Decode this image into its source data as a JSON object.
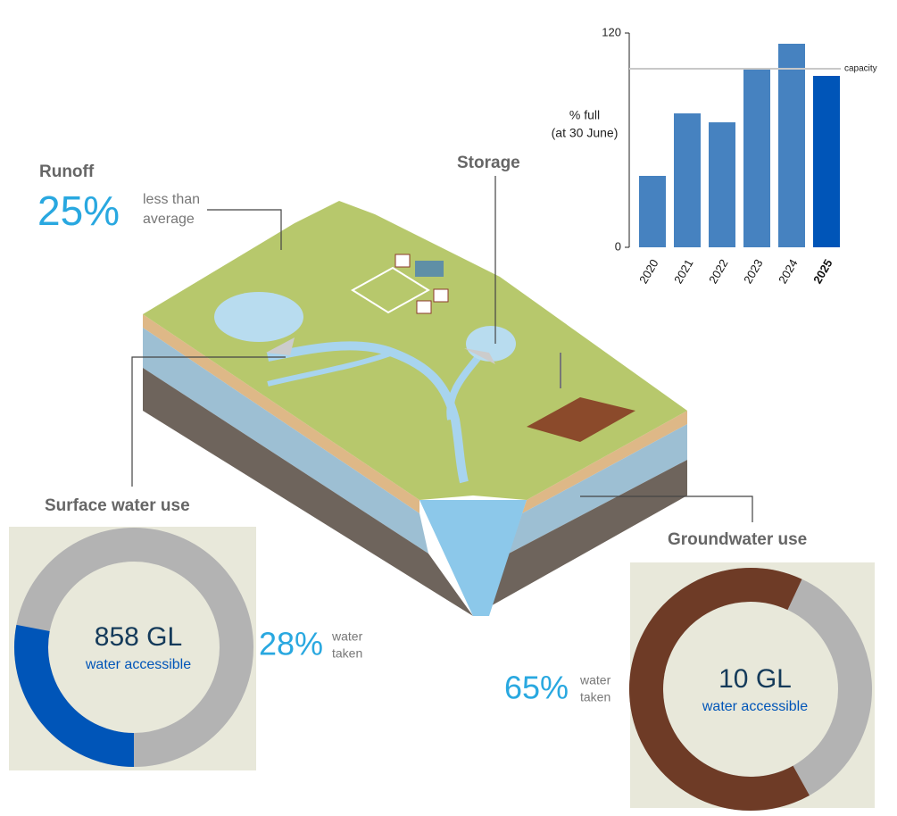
{
  "runoff": {
    "title": "Runoff",
    "value_label": "25%",
    "note": [
      "less than",
      "average"
    ]
  },
  "chart_data": [
    {
      "type": "bar",
      "title": "Storage",
      "ylabel": [
        "% full",
        "(at 30 June)"
      ],
      "categories": [
        "2020",
        "2021",
        "2022",
        "2023",
        "2024",
        "2025"
      ],
      "values": [
        40,
        75,
        70,
        100,
        114,
        96
      ],
      "colors": [
        "#4682c0",
        "#4682c0",
        "#4682c0",
        "#4682c0",
        "#4682c0",
        "#0055b8"
      ],
      "highlight_index": 5,
      "ylim": [
        0,
        120
      ],
      "yticks": [
        0,
        120
      ],
      "reference": {
        "value": 100,
        "label": "capacity"
      }
    },
    {
      "type": "donut",
      "title": "Surface water use",
      "value": 28,
      "value_label": "28%",
      "note": [
        "water",
        "taken"
      ],
      "center_label": "858 GL",
      "center_sublabel": "water accessible",
      "range": [
        0,
        100
      ],
      "color": "#0055b8",
      "track_color": "#b3b3b3",
      "background": "#e8e8da"
    },
    {
      "type": "donut",
      "title": "Groundwater use",
      "value": 65,
      "value_label": "65%",
      "note": [
        "water",
        "taken"
      ],
      "center_label": "10 GL",
      "center_sublabel": "water accessible",
      "range": [
        0,
        100
      ],
      "color": "#6e3b26",
      "track_color": "#b3b3b3",
      "background": "#e8e8da"
    }
  ]
}
